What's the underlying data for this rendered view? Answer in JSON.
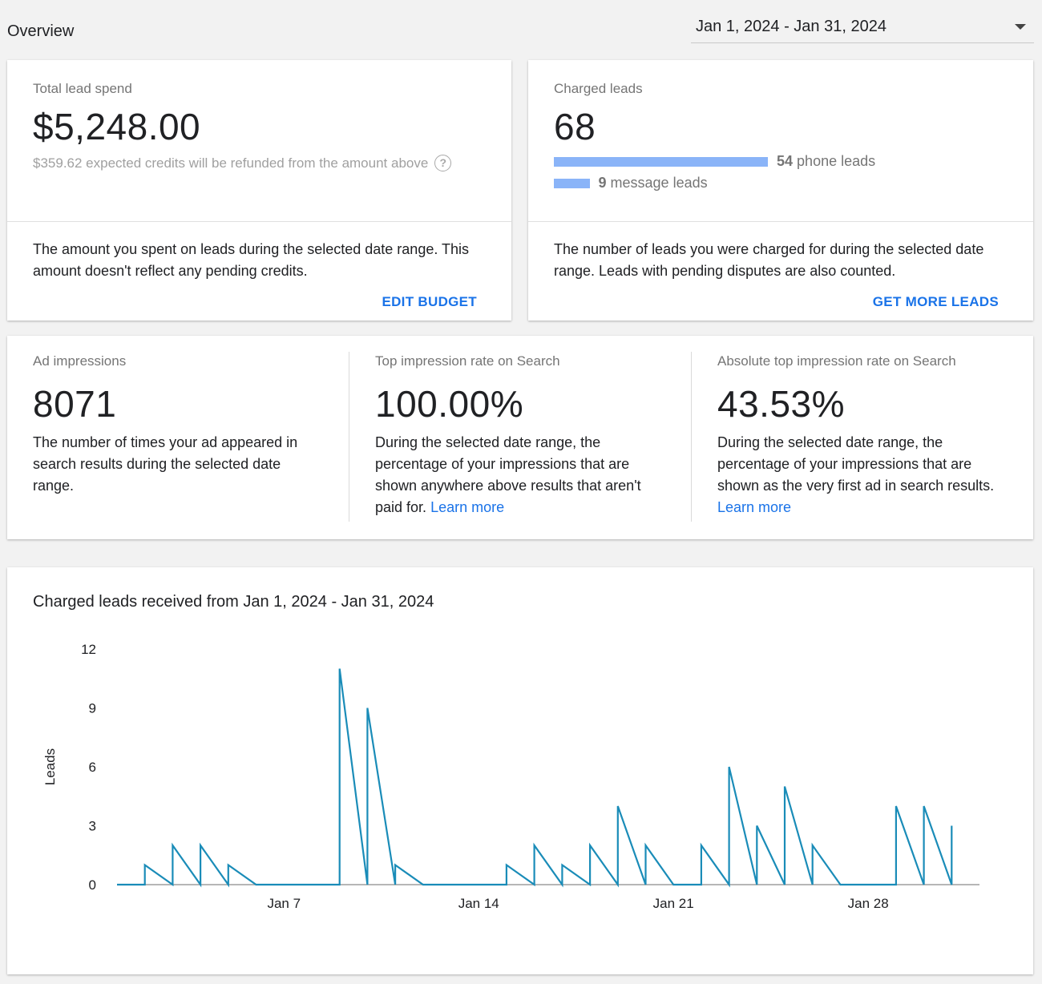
{
  "header": {
    "title": "Overview",
    "date_range": "Jan 1, 2024 - Jan 31, 2024"
  },
  "lead_spend": {
    "label": "Total lead spend",
    "value": "$5,248.00",
    "refund_note": "$359.62 expected credits will be refunded from the amount above",
    "description": "The amount you spent on leads during the selected date range. This amount doesn't reflect any pending credits.",
    "action": "EDIT BUDGET"
  },
  "charged_leads": {
    "label": "Charged leads",
    "value": "68",
    "phone_count": "54",
    "phone_label": "phone leads",
    "message_count": "9",
    "message_label": "message leads",
    "description": "The number of leads you were charged for during the selected date range. Leads with pending disputes are also counted.",
    "action": "GET MORE LEADS"
  },
  "metrics": [
    {
      "label": "Ad impressions",
      "value": "8071",
      "description": "The number of times your ad appeared in search results during the selected date range.",
      "link": ""
    },
    {
      "label": "Top impression rate on Search",
      "value": "100.00%",
      "description": "During the selected date range, the percentage of your impressions that are shown anywhere above results that aren't paid for.",
      "link": "Learn more"
    },
    {
      "label": "Absolute top impression rate on Search",
      "value": "43.53%",
      "description": "During the selected date range, the percentage of your impressions that are shown as the very first ad in search results.",
      "link": "Learn more"
    }
  ],
  "chart_card": {
    "title": "Charged leads received from Jan 1, 2024 - Jan 31, 2024"
  },
  "colors": {
    "accent": "#1a73e8",
    "bar": "#8ab4f8",
    "line": "#1a8cb8"
  },
  "chart_data": {
    "type": "line",
    "ylabel": "Leads",
    "xlabel": "",
    "ylim": [
      0,
      12
    ],
    "y_ticks": [
      "0",
      "3",
      "6",
      "9",
      "12"
    ],
    "x_ticks": [
      {
        "day": 7,
        "label": "Jan 7"
      },
      {
        "day": 14,
        "label": "Jan 14"
      },
      {
        "day": 21,
        "label": "Jan 21"
      },
      {
        "day": 28,
        "label": "Jan 28"
      }
    ],
    "grid": false,
    "series": [
      {
        "points": [
          [
            1,
            0
          ],
          [
            2,
            0
          ],
          [
            2,
            1
          ],
          [
            3,
            0
          ],
          [
            3,
            2
          ],
          [
            4,
            0
          ],
          [
            4,
            2
          ],
          [
            5,
            0
          ],
          [
            5,
            1
          ],
          [
            6,
            0
          ],
          [
            7,
            0
          ],
          [
            8,
            0
          ],
          [
            9,
            0
          ],
          [
            9,
            11
          ],
          [
            10,
            0
          ],
          [
            10,
            9
          ],
          [
            11,
            0
          ],
          [
            11,
            1
          ],
          [
            12,
            0
          ],
          [
            13,
            0
          ],
          [
            14,
            0
          ],
          [
            15,
            0
          ],
          [
            15,
            1
          ],
          [
            16,
            0
          ],
          [
            16,
            2
          ],
          [
            17,
            0
          ],
          [
            17,
            1
          ],
          [
            18,
            0
          ],
          [
            18,
            2
          ],
          [
            19,
            0
          ],
          [
            19,
            4
          ],
          [
            20,
            0
          ],
          [
            20,
            2
          ],
          [
            21,
            0
          ],
          [
            22,
            0
          ],
          [
            22,
            2
          ],
          [
            23,
            0
          ],
          [
            23,
            6
          ],
          [
            24,
            0
          ],
          [
            24,
            3
          ],
          [
            25,
            0
          ],
          [
            25,
            5
          ],
          [
            26,
            0
          ],
          [
            26,
            2
          ],
          [
            27,
            0
          ],
          [
            28,
            0
          ],
          [
            29,
            0
          ],
          [
            29,
            4
          ],
          [
            30,
            0
          ],
          [
            30,
            4
          ],
          [
            31,
            0
          ],
          [
            31,
            3
          ]
        ]
      }
    ]
  }
}
